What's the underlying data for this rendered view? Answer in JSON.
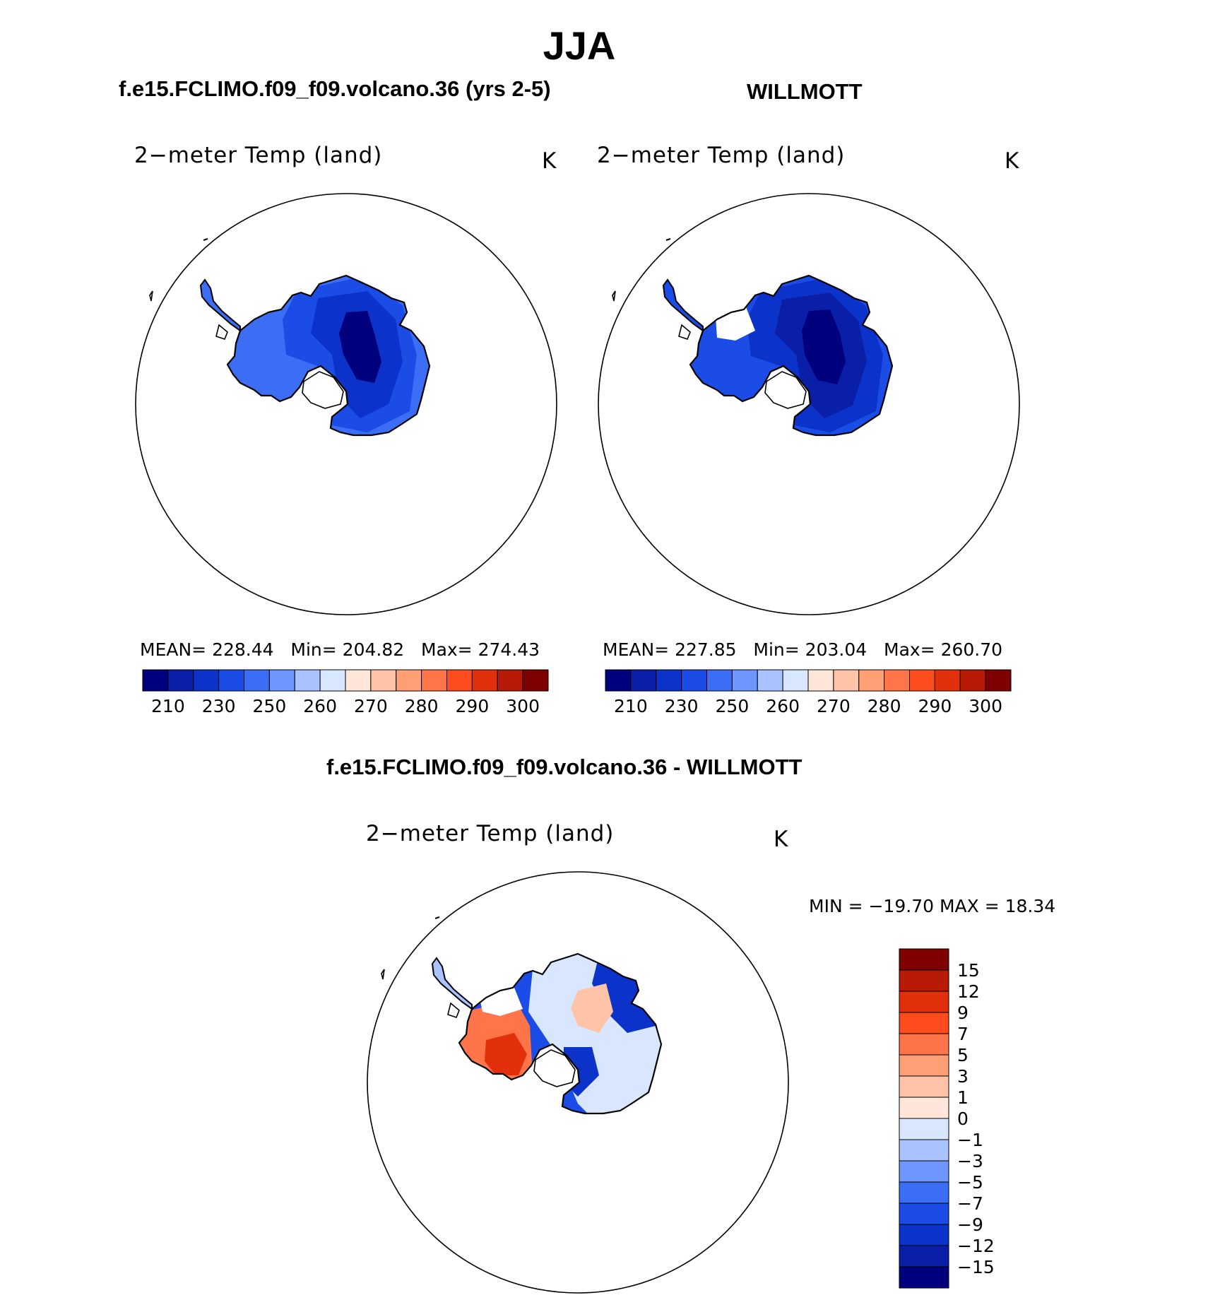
{
  "figure": {
    "title": "JJA",
    "difference_title": "f.e15.FCLIMO.f09_f09.volcano.36 - WILLMOTT"
  },
  "panels": [
    {
      "title": "f.e15.FCLIMO.f09_f09.volcano.36 (yrs 2-5)",
      "field": "2−meter Temp (land)",
      "units": "K",
      "stats": {
        "mean_label": "MEAN=",
        "mean": "228.44",
        "min_label": "Min=",
        "min": "204.82",
        "max_label": "Max=",
        "max": "274.43"
      }
    },
    {
      "title": "WILLMOTT",
      "field": "2−meter Temp (land)",
      "units": "K",
      "stats": {
        "mean_label": "MEAN=",
        "mean": "227.85",
        "min_label": "Min=",
        "min": "203.04",
        "max_label": "Max=",
        "max": "260.70"
      }
    }
  ],
  "difference_panel": {
    "field": "2−meter Temp (land)",
    "units": "K",
    "min_max_text": "MIN = −19.70 MAX =   18.34"
  },
  "colorbar_absolute": {
    "colors": [
      "#00007f",
      "#0a1fa8",
      "#0c33c9",
      "#1b4de6",
      "#3c6ef5",
      "#6f95ff",
      "#a9c3ff",
      "#d8e7ff",
      "#ffe6d8",
      "#ffc4a8",
      "#ff9f75",
      "#ff7448",
      "#ff4c1e",
      "#e3300c",
      "#b71a06",
      "#7f0000"
    ],
    "tick_labels": [
      "210",
      "230",
      "250",
      "260",
      "270",
      "280",
      "290",
      "300"
    ]
  },
  "colorbar_difference": {
    "colors": [
      "#00007f",
      "#0a1fa8",
      "#0c33c9",
      "#1b4de6",
      "#3c6ef5",
      "#6f95ff",
      "#a9c3ff",
      "#d8e7ff",
      "#ffe6d8",
      "#ffc4a8",
      "#ff9f75",
      "#ff7448",
      "#ff4c1e",
      "#e3300c",
      "#b71a06",
      "#7f0000"
    ],
    "tick_labels": [
      "−15",
      "−12",
      "−9",
      "−7",
      "−5",
      "−3",
      "−1",
      "0",
      "1",
      "3",
      "5",
      "7",
      "9",
      "12",
      "15"
    ]
  },
  "map_colors": {
    "panel1": {
      "outer": "#3c6ef5",
      "mid": "#1b4de6",
      "inner": "#0c33c9",
      "core": "#00007f"
    },
    "panel2": {
      "outer": "#1b4de6",
      "mid": "#0c33c9",
      "inner": "#0a1fa8",
      "core": "#00007f"
    },
    "diff": {
      "west": "#ff7448",
      "west_core": "#e3300c",
      "east": "#1b4de6",
      "east_core": "#0c33c9",
      "warm": "#ffc4a8",
      "cool": "#a9c3ff",
      "light": "#d8e7ff"
    }
  }
}
